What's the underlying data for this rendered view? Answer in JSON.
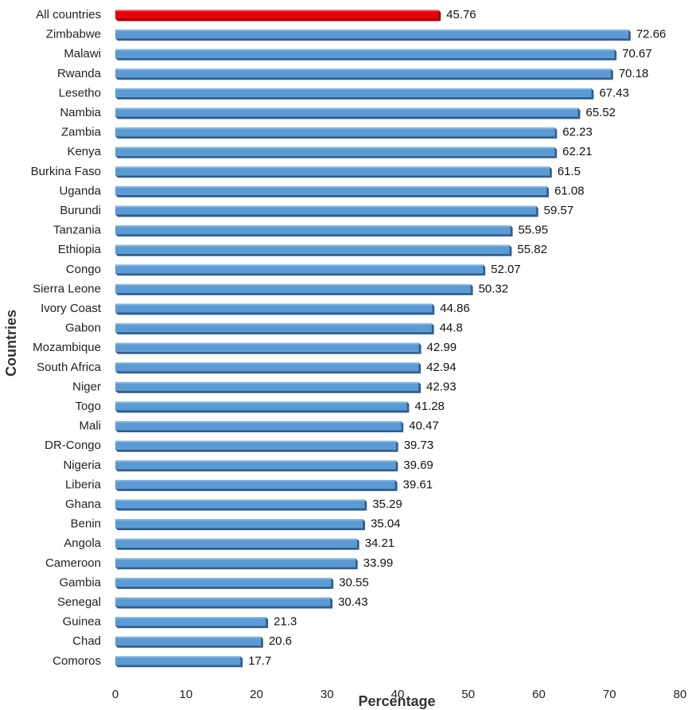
{
  "chart_data": {
    "type": "bar",
    "orientation": "horizontal",
    "xlabel": "Percentage",
    "ylabel": "Countries",
    "xlim": [
      0,
      80
    ],
    "xticks": [
      0,
      10,
      20,
      30,
      40,
      50,
      60,
      70,
      80
    ],
    "grid": false,
    "legend": false,
    "colors": {
      "highlight": "#e8000b",
      "bar": "#5b9bd5",
      "bar_edge": "#2e5f8f",
      "highlight_edge": "#9a0007"
    },
    "categories": [
      "All countries",
      "Zimbabwe",
      "Malawi",
      "Rwanda",
      "Lesetho",
      "Nambia",
      "Zambia",
      "Kenya",
      "Burkina Faso",
      "Uganda",
      "Burundi",
      "Tanzania",
      "Ethiopia",
      "Congo",
      "Sierra Leone",
      "Ivory Coast",
      "Gabon",
      "Mozambique",
      "South Africa",
      "Niger",
      "Togo",
      "Mali",
      "DR-Congo",
      "Nigeria",
      "Liberia",
      "Ghana",
      "Benin",
      "Angola",
      "Cameroon",
      "Gambia",
      "Senegal",
      "Guinea",
      "Chad",
      "Comoros"
    ],
    "values": [
      45.76,
      72.66,
      70.67,
      70.18,
      67.43,
      65.52,
      62.23,
      62.21,
      61.5,
      61.08,
      59.57,
      55.95,
      55.82,
      52.07,
      50.32,
      44.86,
      44.8,
      42.99,
      42.94,
      42.93,
      41.28,
      40.47,
      39.73,
      39.69,
      39.61,
      35.29,
      35.04,
      34.21,
      33.99,
      30.55,
      30.43,
      21.3,
      20.6,
      17.7
    ],
    "value_labels": [
      "45.76",
      "72.66",
      "70.67",
      "70.18",
      "67.43",
      "65.52",
      "62.23",
      "62.21",
      "61.5",
      "61.08",
      "59.57",
      "55.95",
      "55.82",
      "52.07",
      "50.32",
      "44.86",
      "44.8",
      "42.99",
      "42.94",
      "42.93",
      "41.28",
      "40.47",
      "39.73",
      "39.69",
      "39.61",
      "35.29",
      "35.04",
      "34.21",
      "33.99",
      "30.55",
      "30.43",
      "21.3",
      "20.6",
      "17.7"
    ],
    "highlight_index": 0
  }
}
